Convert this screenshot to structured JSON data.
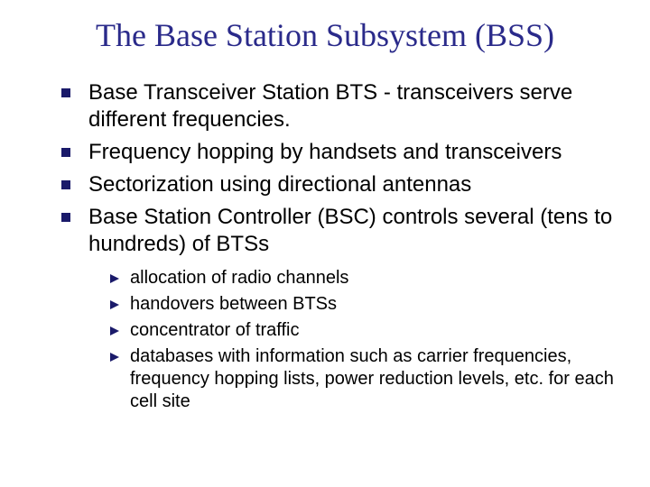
{
  "colors": {
    "title": "#2a2a8a",
    "body_text": "#000000",
    "bullet_square": "#1a1a6a",
    "sub_arrow": "#1a1a6a",
    "background": "#ffffff"
  },
  "typography": {
    "title_font": "Times New Roman",
    "title_fontsize": 36,
    "body_font": "Verdana",
    "bullet_fontsize": 24,
    "sub_fontsize": 20
  },
  "title": "The Base Station Subsystem (BSS)",
  "bullets": [
    "Base Transceiver Station BTS - transceivers serve different frequencies.",
    "Frequency hopping by handsets and transceivers",
    "Sectorization using directional antennas",
    "Base Station Controller (BSC) controls several (tens to hundreds) of BTSs"
  ],
  "sub_bullets": [
    "allocation of radio channels",
    "handovers between BTSs",
    "concentrator of traffic",
    "databases with information such as carrier frequencies, frequency hopping lists, power reduction levels, etc. for each cell site"
  ]
}
